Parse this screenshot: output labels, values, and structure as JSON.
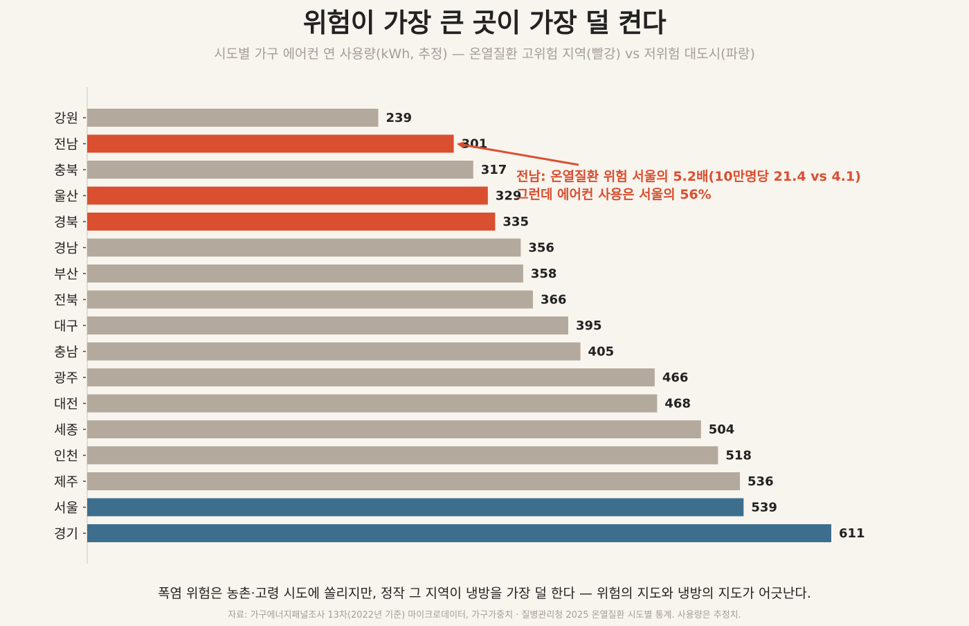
{
  "page": {
    "title": "위험이 가장 큰 곳이 가장 덜 켠다",
    "subtitle": "시도별 가구 에어컨 연 사용량(kWh, 추정) — 온열질환 고위험 지역(빨강) vs 저위험 대도시(파랑)",
    "caption": "폭염 위험은 농촌·고령 시도에 쏠리지만, 정작 그 지역이 냉방을 가장 덜 한다 — 위험의 지도와 냉방의 지도가 어긋난다.",
    "source": "자료: 가구에너지패널조사 13차(2022년 기준) 마이크로데이터, 가구가중치 · 질병관리청 2025 온열질환 시도별 통계. 사용량은 추정치."
  },
  "colors": {
    "background": "#f8f4ee",
    "neutral": "#b3a99c",
    "high_risk": "#d94f30",
    "low_risk": "#3d6e8e",
    "axis": "#e3dccf"
  },
  "chart_data": {
    "type": "bar",
    "orientation": "horizontal",
    "title": "위험이 가장 큰 곳이 가장 덜 켠다",
    "subtitle": "시도별 가구 에어컨 연 사용량(kWh, 추정) — 온열질환 고위험 지역(빨강) vs 저위험 대도시(파랑)",
    "xlim": [
      0,
      611
    ],
    "grid": false,
    "legend": "none",
    "categories": [
      "강원",
      "전남",
      "충북",
      "울산",
      "경북",
      "경남",
      "부산",
      "전북",
      "대구",
      "충남",
      "광주",
      "대전",
      "세종",
      "인천",
      "제주",
      "서울",
      "경기"
    ],
    "values": [
      239,
      301,
      317,
      329,
      335,
      356,
      358,
      366,
      395,
      405,
      466,
      468,
      504,
      518,
      536,
      539,
      611
    ],
    "groups": [
      "neutral",
      "high_risk",
      "neutral",
      "high_risk",
      "high_risk",
      "neutral",
      "neutral",
      "neutral",
      "neutral",
      "neutral",
      "neutral",
      "neutral",
      "neutral",
      "neutral",
      "neutral",
      "low_risk",
      "low_risk"
    ],
    "annotation": {
      "target": "전남",
      "lines": [
        "전남: 온열질환 위험 서울의 5.2배(10만명당 21.4 vs 4.1)",
        "그런데 에어컨 사용은 서울의 56%"
      ]
    }
  }
}
